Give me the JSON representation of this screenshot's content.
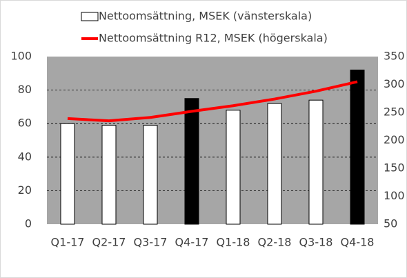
{
  "chart_data": {
    "type": "bar_line",
    "categories": [
      "Q1-17",
      "Q2-17",
      "Q3-17",
      "Q4-17",
      "Q1-18",
      "Q2-18",
      "Q3-18",
      "Q4-18"
    ],
    "series": [
      {
        "name": "Nettoomsättning, MSEK (vänsterskala)",
        "type": "bar",
        "color": "#ffffff",
        "colors": [
          "#ffffff",
          "#ffffff",
          "#ffffff",
          "#000000",
          "#ffffff",
          "#ffffff",
          "#ffffff",
          "#000000"
        ],
        "values": [
          60,
          59,
          59,
          75,
          68,
          72,
          74,
          92
        ]
      },
      {
        "name": "Nettoomsättning R12, MSEK (högerskala)",
        "type": "line",
        "color": "#ff0000",
        "axis": "y2",
        "values": [
          239,
          235,
          241,
          252,
          262,
          274,
          288,
          305
        ]
      }
    ],
    "ylim": [
      0,
      100
    ],
    "yticks": [
      0,
      20,
      40,
      60,
      80,
      100
    ],
    "y2lim": [
      50,
      350
    ],
    "y2ticks": [
      50,
      100,
      150,
      200,
      250,
      300,
      350
    ],
    "grid": true,
    "legend": "top"
  }
}
